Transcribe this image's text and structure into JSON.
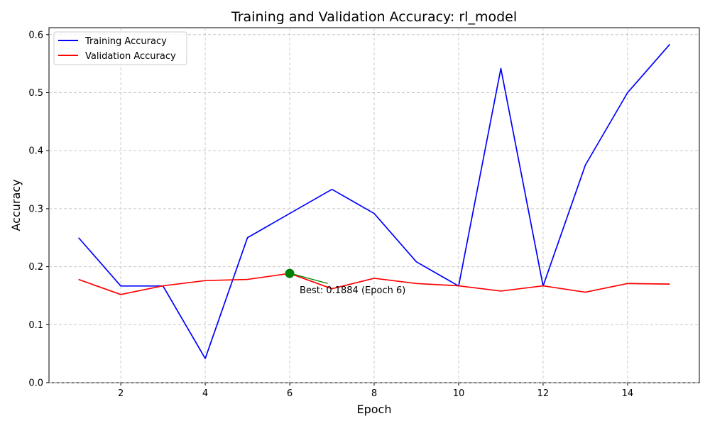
{
  "chart_data": {
    "type": "line",
    "title": "Training and Validation Accuracy: rl_model",
    "xlabel": "Epoch",
    "ylabel": "Accuracy",
    "x": [
      1,
      2,
      3,
      4,
      5,
      6,
      7,
      8,
      9,
      10,
      11,
      12,
      13,
      14,
      15
    ],
    "xlim": [
      0.3,
      15.7
    ],
    "ylim": [
      0,
      0.612
    ],
    "xticks": [
      2,
      4,
      6,
      8,
      10,
      12,
      14
    ],
    "xtick_labels": [
      "2",
      "4",
      "6",
      "8",
      "10",
      "12",
      "14"
    ],
    "yticks": [
      0.0,
      0.1,
      0.2,
      0.3,
      0.4,
      0.5,
      0.6
    ],
    "ytick_labels": [
      "0.0",
      "0.1",
      "0.2",
      "0.3",
      "0.4",
      "0.5",
      "0.6"
    ],
    "grid": true,
    "legend_position": "top-left",
    "series": [
      {
        "name": "Training Accuracy",
        "color": "#0000ff",
        "values": [
          0.25,
          0.1667,
          0.1667,
          0.0417,
          0.25,
          0.2917,
          0.3333,
          0.2917,
          0.2083,
          0.1667,
          0.5417,
          0.1667,
          0.375,
          0.5,
          0.5833
        ]
      },
      {
        "name": "Validation Accuracy",
        "color": "#ff0000",
        "values": [
          0.178,
          0.152,
          0.167,
          0.176,
          0.178,
          0.1884,
          0.162,
          0.18,
          0.171,
          0.167,
          0.158,
          0.167,
          0.156,
          0.171,
          0.17
        ]
      }
    ],
    "best_point": {
      "x": 6,
      "y": 0.1884,
      "color": "#008000",
      "label": "Best: 0.1884 (Epoch 6)",
      "arrow_tail": {
        "x": 6.9,
        "y": 0.171
      }
    }
  }
}
